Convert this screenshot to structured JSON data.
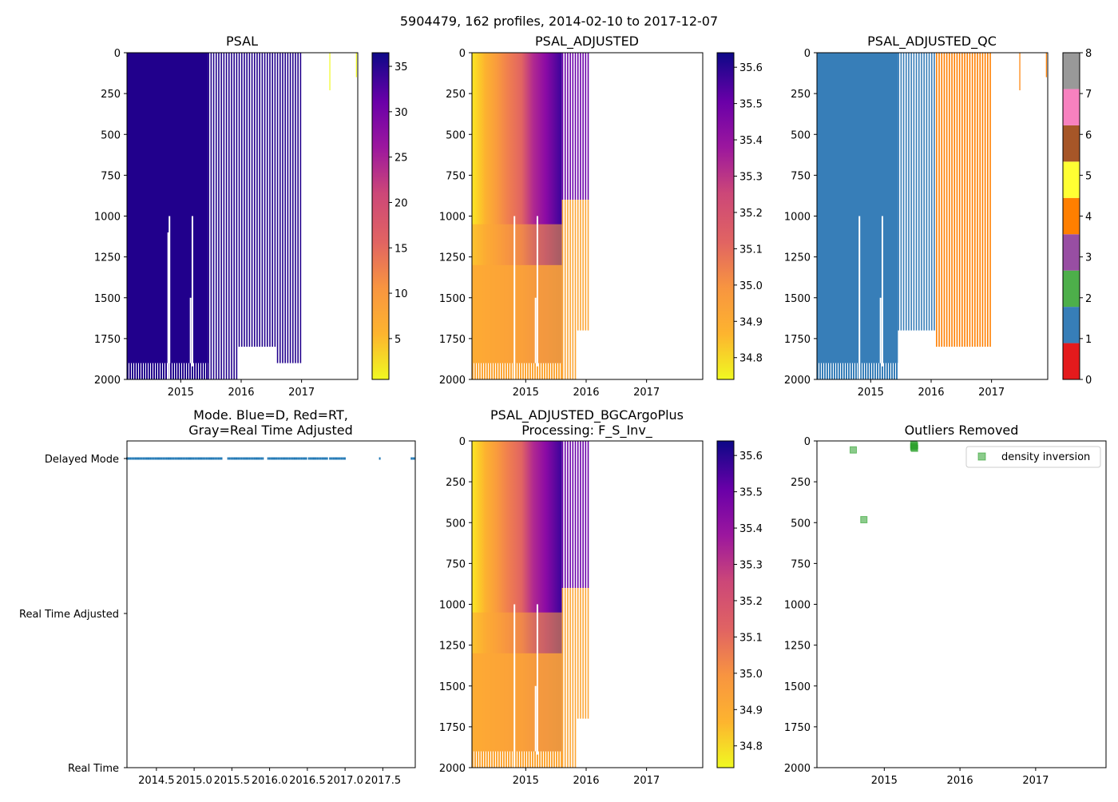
{
  "suptitle": "5904479, 162 profiles, 2014-02-10 to 2017-12-07",
  "colors": {
    "psal_dark": "#21008c",
    "qc1": "#377eb8",
    "qc4": "#ff7f00",
    "qc5": "#ffff33",
    "mode_dot": "#1f77b4",
    "outlier": "#2ca02c",
    "axis": "#000000"
  },
  "chart_data": [
    {
      "id": "psal",
      "type": "heatmap",
      "title": "PSAL",
      "ylim": [
        2000,
        0
      ],
      "yticks": [
        "0",
        "250",
        "500",
        "750",
        "1000",
        "1250",
        "1500",
        "1750",
        "2000"
      ],
      "xlim": [
        2014.11,
        2017.93
      ],
      "xticks": [
        "2015",
        "2016",
        "2017"
      ],
      "colorbar": {
        "cmap": "plasma_r",
        "range": [
          0.5,
          36.5
        ],
        "ticks": [
          "5",
          "10",
          "15",
          "20",
          "25",
          "30",
          "35"
        ]
      }
    },
    {
      "id": "psal_adjusted",
      "type": "heatmap",
      "title": "PSAL_ADJUSTED",
      "ylim": [
        2000,
        0
      ],
      "yticks": [
        "0",
        "250",
        "500",
        "750",
        "1000",
        "1250",
        "1500",
        "1750",
        "2000"
      ],
      "xlim": [
        2014.11,
        2017.93
      ],
      "xticks": [
        "2015",
        "2016",
        "2017"
      ],
      "colorbar": {
        "cmap": "plasma_r",
        "range": [
          34.74,
          35.64
        ],
        "ticks": [
          "34.8",
          "34.9",
          "35.0",
          "35.1",
          "35.2",
          "35.3",
          "35.4",
          "35.5",
          "35.6"
        ]
      }
    },
    {
      "id": "psal_adjusted_qc",
      "type": "heatmap",
      "title": "PSAL_ADJUSTED_QC",
      "ylim": [
        2000,
        0
      ],
      "yticks": [
        "0",
        "250",
        "500",
        "750",
        "1000",
        "1250",
        "1500",
        "1750",
        "2000"
      ],
      "xlim": [
        2014.11,
        2017.93
      ],
      "xticks": [
        "2015",
        "2016",
        "2017"
      ],
      "colorbar": {
        "cmap": "Set1",
        "range": [
          0,
          8
        ],
        "ticks": [
          "0",
          "1",
          "2",
          "3",
          "4",
          "5",
          "6",
          "7",
          "8"
        ],
        "bands": [
          "#e41a1c",
          "#377eb8",
          "#4daf4a",
          "#984ea3",
          "#ff7f00",
          "#ffff33",
          "#a65628",
          "#f781bf",
          "#999999"
        ]
      }
    },
    {
      "id": "mode",
      "type": "scatter",
      "title_line1": "Mode. Blue=D, Red=RT,",
      "title_line2": "Gray=Real Time Adjusted",
      "xlim": [
        2014.11,
        2017.93
      ],
      "xticks": [
        "2014.5",
        "2015.0",
        "2015.5",
        "2016.0",
        "2016.5",
        "2017.0",
        "2017.5"
      ],
      "ycategories": [
        "Real Time",
        "Real Time Adjusted",
        "Delayed Mode"
      ],
      "points_level": "Delayed Mode",
      "points_x_ranges": [
        [
          2014.11,
          2015.38
        ],
        [
          2015.45,
          2015.92
        ],
        [
          2015.98,
          2016.18
        ],
        [
          2016.2,
          2016.5
        ],
        [
          2016.52,
          2016.78
        ],
        [
          2016.8,
          2017.0
        ],
        [
          2017.46,
          2017.46
        ],
        [
          2017.88,
          2017.93
        ]
      ]
    },
    {
      "id": "psal_adjusted_bgc",
      "type": "heatmap",
      "title_line1": "PSAL_ADJUSTED_BGCArgoPlus",
      "title_line2": "Processing: F_S_Inv_",
      "ylim": [
        2000,
        0
      ],
      "yticks": [
        "0",
        "250",
        "500",
        "750",
        "1000",
        "1250",
        "1500",
        "1750",
        "2000"
      ],
      "xlim": [
        2014.11,
        2017.93
      ],
      "xticks": [
        "2015",
        "2016",
        "2017"
      ],
      "colorbar": {
        "cmap": "plasma_r",
        "range": [
          34.74,
          35.64
        ],
        "ticks": [
          "34.8",
          "34.9",
          "35.0",
          "35.1",
          "35.2",
          "35.3",
          "35.4",
          "35.5",
          "35.6"
        ]
      }
    },
    {
      "id": "outliers",
      "type": "scatter",
      "title": "Outliers Removed",
      "ylim": [
        2000,
        0
      ],
      "yticks": [
        "0",
        "250",
        "500",
        "750",
        "1000",
        "1250",
        "1500",
        "1750",
        "2000"
      ],
      "xlim": [
        2014.11,
        2017.93
      ],
      "xticks": [
        "2015",
        "2016",
        "2017"
      ],
      "legend": {
        "label": "density inversion",
        "loc": "upper right"
      },
      "points": [
        {
          "x": 2014.59,
          "y": 55
        },
        {
          "x": 2014.73,
          "y": 482
        },
        {
          "x": 2015.39,
          "y": 22
        },
        {
          "x": 2015.39,
          "y": 32
        },
        {
          "x": 2015.39,
          "y": 40
        },
        {
          "x": 2015.4,
          "y": 28
        },
        {
          "x": 2015.4,
          "y": 45
        }
      ]
    }
  ]
}
